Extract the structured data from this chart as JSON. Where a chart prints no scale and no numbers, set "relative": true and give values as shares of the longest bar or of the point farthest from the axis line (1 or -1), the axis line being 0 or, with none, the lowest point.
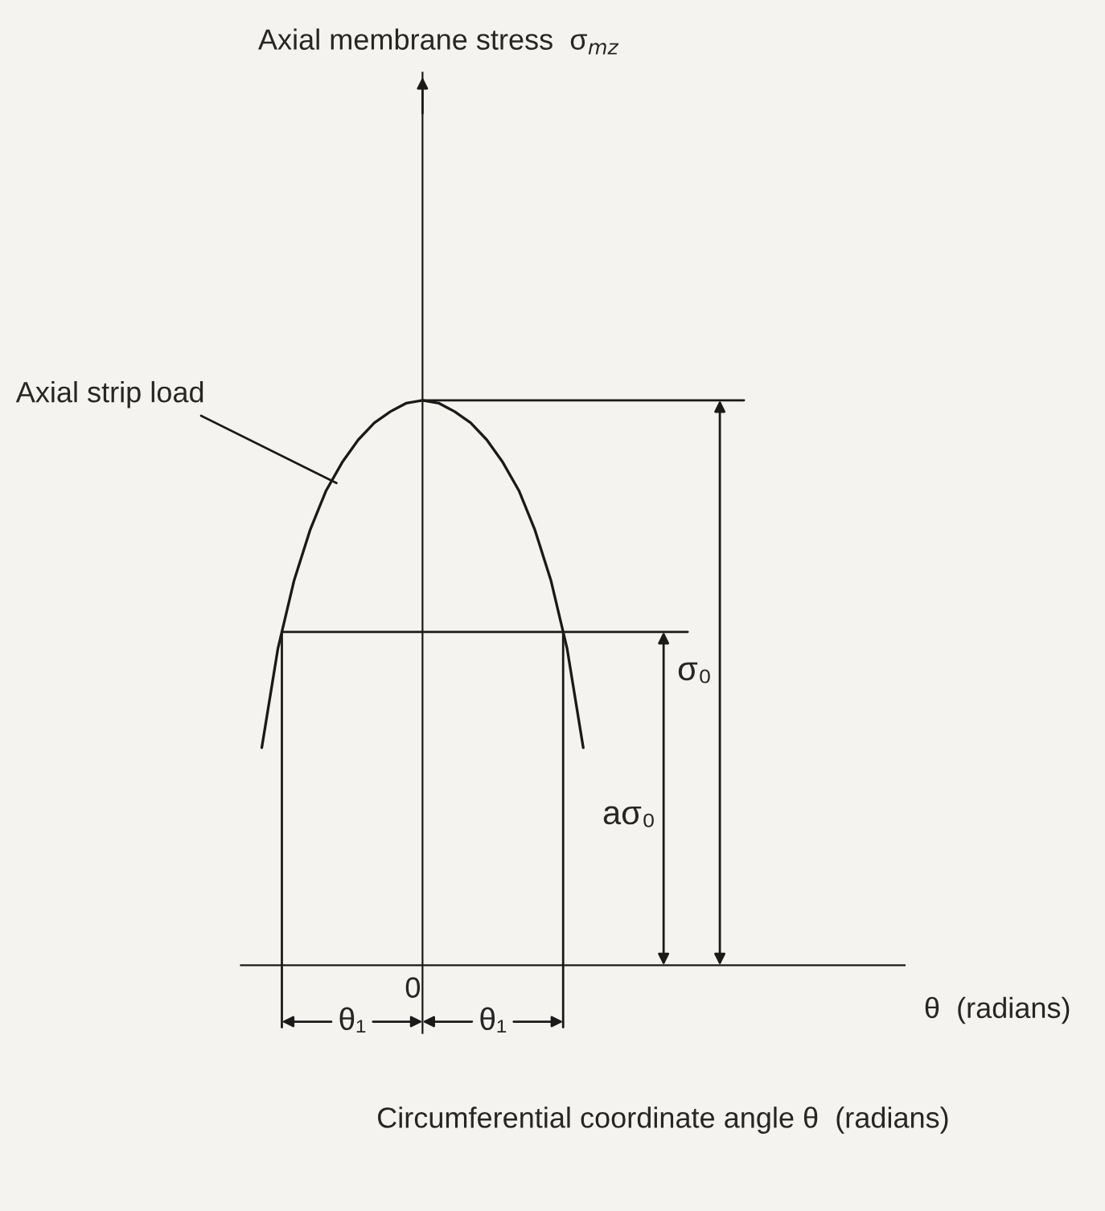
{
  "chart_data": {
    "type": "line",
    "relative": true,
    "xlabel": "Circumferential coordinate angle θ  (radians)",
    "categories": [
      null,
      null,
      null,
      null,
      null,
      null,
      null,
      null,
      null,
      null,
      null,
      null,
      null,
      null,
      null,
      null,
      null,
      null,
      null,
      null,
      null
    ],
    "series": [
      {
        "color": "#1a1a1a",
        "values": [
          0.385,
          0.56,
          0.68,
          0.77,
          0.84,
          0.89,
          0.93,
          0.96,
          0.98,
          0.995,
          1.0,
          0.995,
          0.98,
          0.96,
          0.93,
          0.89,
          0.84,
          0.77,
          0.68,
          0.56,
          0.385
        ]
      }
    ],
    "ref_lines": [
      {
        "axis": "y",
        "value": 1.0
      },
      {
        "axis": "y",
        "value": 0.59
      }
    ],
    "annotations": [
      "Axial membrane stress  σ$_{mz}$",
      "Axial strip load",
      "0",
      "θ  (radians)",
      "σ₀",
      "aσ₀",
      "θ₁",
      "θ₁"
    ],
    "marker": "none",
    "line_style": "solid"
  }
}
